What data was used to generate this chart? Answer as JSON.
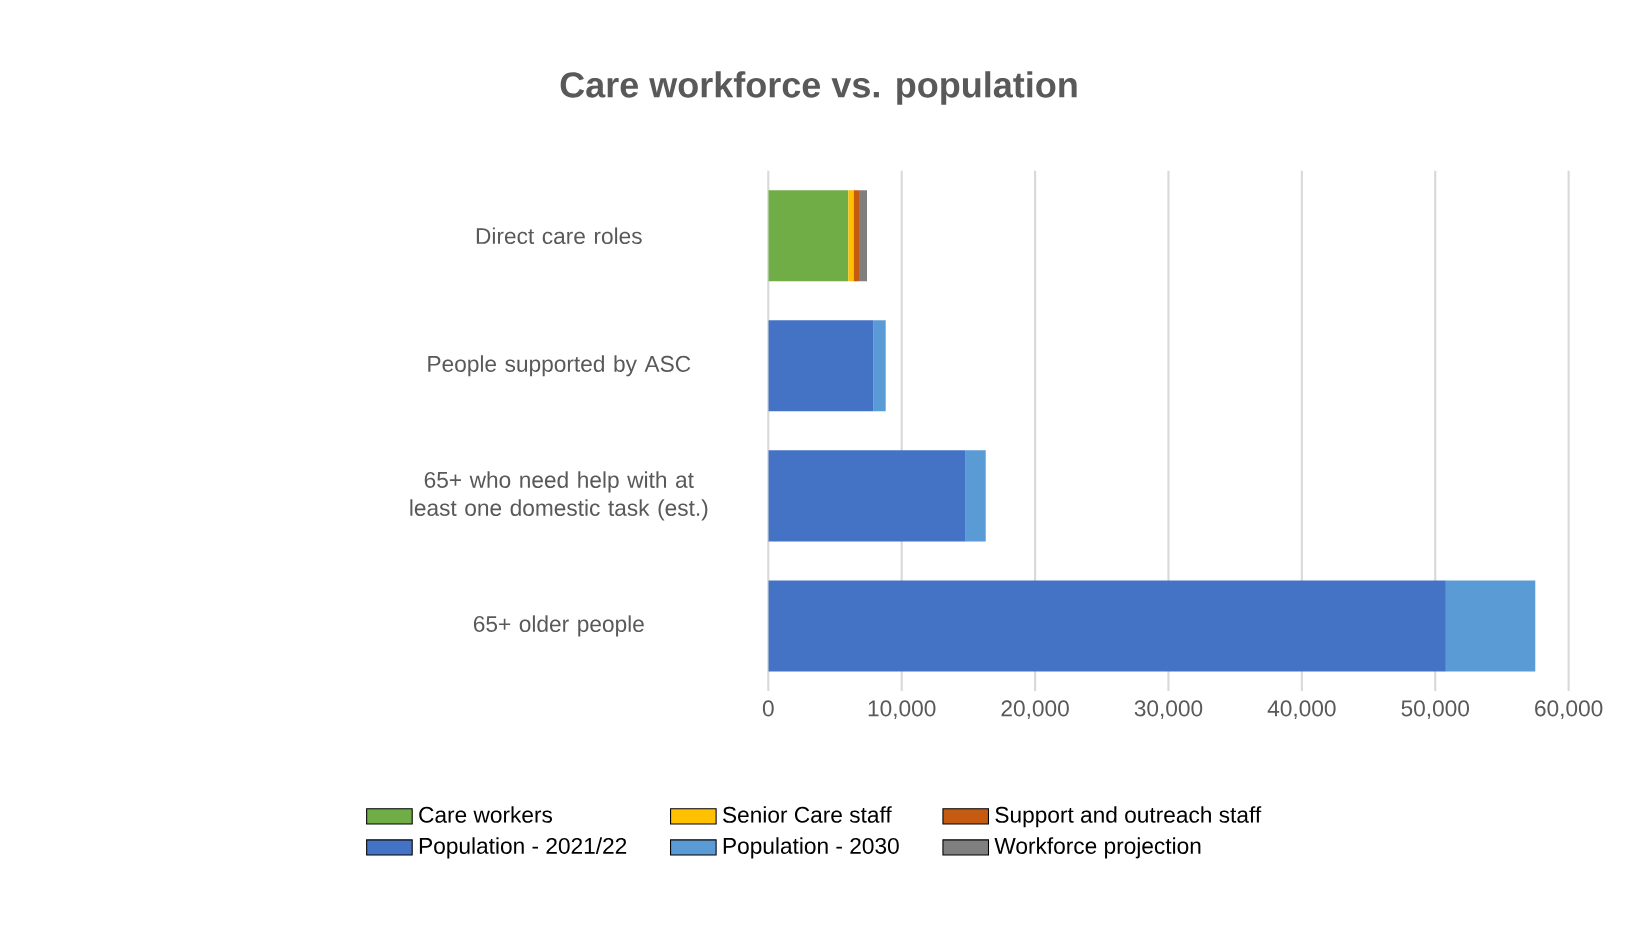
{
  "chart_data": {
    "type": "bar",
    "orientation": "horizontal",
    "stacked": true,
    "title": "Care workforce vs. population",
    "categories": [
      "Direct care roles",
      "People supported by ASC",
      "65+ who need help with at least one domestic task (est.)",
      "65+ older people"
    ],
    "series": [
      {
        "name": "Care workers",
        "color": "#70ad47",
        "values": [
          6000,
          null,
          null,
          null
        ]
      },
      {
        "name": "Senior Care staff",
        "color": "#ffc000",
        "values": [
          400,
          null,
          null,
          null
        ]
      },
      {
        "name": "Support and outreach staff",
        "color": "#c55a11",
        "values": [
          400,
          null,
          null,
          null
        ]
      },
      {
        "name": "Population - 2021/22",
        "color": "#4472c4",
        "values": [
          null,
          7900,
          14800,
          50800
        ]
      },
      {
        "name": "Population - 2030",
        "color": "#5b9bd5",
        "values": [
          null,
          900,
          1500,
          6700
        ]
      },
      {
        "name": "Workforce projection",
        "color": "#7f7f7f",
        "values": [
          600,
          null,
          null,
          null
        ]
      }
    ],
    "xlim": [
      0,
      60000
    ],
    "xticks": [
      {
        "value": 0,
        "label": "0"
      },
      {
        "value": 10000,
        "label": "10,000"
      },
      {
        "value": 20000,
        "label": "20,000"
      },
      {
        "value": 30000,
        "label": "30,000"
      },
      {
        "value": 40000,
        "label": "40,000"
      },
      {
        "value": 50000,
        "label": "50,000"
      },
      {
        "value": 60000,
        "label": "60,000"
      }
    ],
    "grid": "x",
    "legend": "bottom"
  }
}
